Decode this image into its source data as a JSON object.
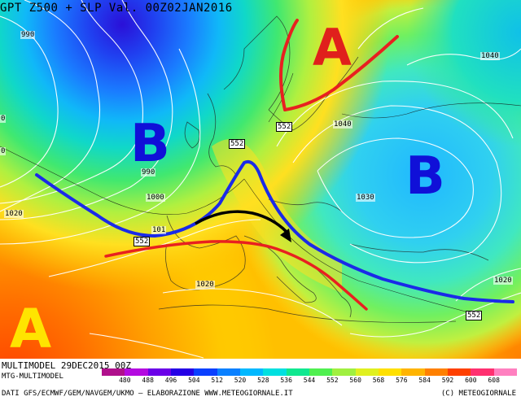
{
  "header": {
    "title": "GPT Z500 + SLP Val. 00Z02JAN2016"
  },
  "footer": {
    "run_date": "MULTIMODEL 29DEC2015 00Z",
    "model": "MTG-MULTIMODEL",
    "credits": "DATI GFS/ECMWF/GEM/NAVGEM/UKMO – ELABORAZIONE WWW.METEOGIORNALE.IT",
    "copyright": "(C) METEOGIORNALE"
  },
  "legend": {
    "labels": [
      "480",
      "488",
      "496",
      "504",
      "512",
      "520",
      "528",
      "536",
      "544",
      "552",
      "560",
      "568",
      "576",
      "584",
      "592",
      "600",
      "608"
    ],
    "colors": [
      "#b0108c",
      "#b40ae0",
      "#6a00e8",
      "#2400e6",
      "#0a40ff",
      "#0a80ff",
      "#00b8ff",
      "#00e0e0",
      "#10e890",
      "#50f050",
      "#a0f040",
      "#e0f020",
      "#ffe000",
      "#ffb400",
      "#ff8000",
      "#ff4000",
      "#ff3070",
      "#ff80c0"
    ]
  },
  "centers": {
    "high_north": "A",
    "high_southwest": "A",
    "low_atlantic": "B",
    "low_russia": "B"
  },
  "isobar_labels": {
    "l990_top": "990",
    "l990_mid": "990",
    "l1000": "1000",
    "l1020_left": "1020",
    "l1020_center": "1020",
    "l1020_right": "1020",
    "l1030": "1030",
    "l1040_east": "1040",
    "l1040_north": "1040",
    "l101": "101",
    "l0": "0",
    "l0b": "0"
  },
  "z500_labels": {
    "h552_top": "552",
    "h552_mid": "552",
    "h552_left": "552",
    "h552_right": "552"
  }
}
